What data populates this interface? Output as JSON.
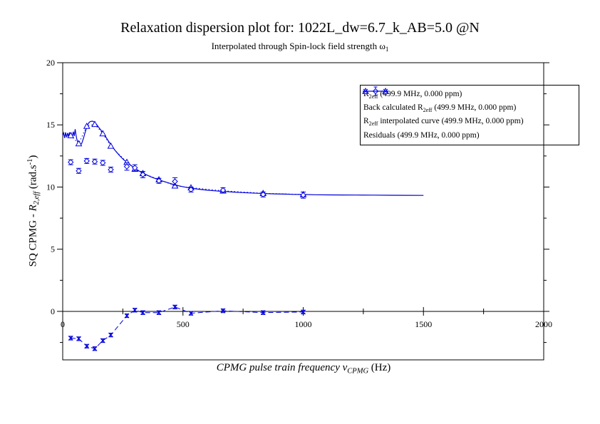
{
  "title": "Relaxation dispersion plot for: 1022L_dw=6.7_k_AB=5.0 @N",
  "subtitle_segments": [
    {
      "t": "Interpolated through Spin-lock field strength "
    },
    {
      "t": "ω"
    },
    {
      "t": "1",
      "sub": true
    }
  ],
  "x_axis": {
    "label_segments": [
      {
        "t": "CPMG pulse train frequency ",
        "i": true
      },
      {
        "t": "ν",
        "i": true
      },
      {
        "t": "CPMG",
        "i": true,
        "sub": true
      },
      {
        "t": " (Hz)"
      }
    ],
    "min": 0,
    "max": 2000,
    "major_ticks": [
      0,
      500,
      1000,
      1500,
      2000
    ],
    "tick_labels": [
      "0",
      "500",
      "1000",
      "1500",
      "2000"
    ],
    "minor_ticks": [
      250,
      750,
      1250,
      1750
    ]
  },
  "y_axis": {
    "label_segments": [
      {
        "t": "SQ CPMG - "
      },
      {
        "t": "R",
        "i": true
      },
      {
        "t": "2,eff",
        "i": true,
        "sub": true
      },
      {
        "t": " (rad.s"
      },
      {
        "t": "-1",
        "sup": true
      },
      {
        "t": ")"
      }
    ],
    "min": -3.9,
    "max": 20,
    "major_ticks": [
      0,
      5,
      10,
      15,
      20
    ],
    "tick_labels": [
      "0",
      "5",
      "10",
      "15",
      "20"
    ],
    "minor_ticks": [
      -2.5,
      2.5,
      7.5,
      12.5,
      17.5
    ]
  },
  "legend": {
    "items": [
      {
        "marker": "diamond-point",
        "segments": [
          {
            "t": "R"
          },
          {
            "t": "2eff",
            "sub": true
          },
          {
            "t": " (499.9 MHz, 0.000 ppm)"
          }
        ]
      },
      {
        "marker": "triangle-dotted",
        "segments": [
          {
            "t": "Back calculated R"
          },
          {
            "t": "2eff",
            "sub": true
          },
          {
            "t": " (499.9 MHz, 0.000 ppm)"
          }
        ]
      },
      {
        "marker": "solid-line",
        "segments": [
          {
            "t": "R"
          },
          {
            "t": "2eff",
            "sub": true
          },
          {
            "t": " interpolated curve (499.9 MHz, 0.000 ppm)"
          }
        ]
      },
      {
        "marker": "x-dashed",
        "segments": [
          {
            "t": "Residuals (499.9 MHz, 0.000 ppm)"
          }
        ]
      }
    ]
  },
  "colors": {
    "series_blue": "#0000dd",
    "axis": "#000000",
    "background": "#ffffff"
  },
  "chart_data": {
    "type": "line",
    "title": "Relaxation dispersion plot for: 1022L_dw=6.7_k_AB=5.0 @N",
    "subtitle": "Interpolated through Spin-lock field strength omega_1",
    "xlabel": "CPMG pulse train frequency nu_CPMG (Hz)",
    "ylabel": "SQ CPMG - R_2,eff (rad.s^-1)",
    "xlim": [
      0,
      2000
    ],
    "ylim": [
      -3.9,
      20
    ],
    "grid": false,
    "legend_position": "upper right",
    "frequencies_hz": [
      33.33,
      66.67,
      100,
      133.33,
      166.67,
      200,
      266.67,
      300,
      333.33,
      400,
      466.67,
      533.33,
      666.67,
      833.33,
      1000
    ],
    "series": [
      {
        "name": "R2eff (499.9 MHz, 0.000 ppm)",
        "type": "scatter",
        "marker": "diamond",
        "values": [
          12.0,
          11.3,
          12.1,
          12.05,
          11.95,
          11.4,
          11.65,
          11.55,
          11.0,
          10.5,
          10.45,
          9.8,
          9.75,
          9.4,
          9.35
        ],
        "errors": [
          0.2,
          0.2,
          0.2,
          0.2,
          0.2,
          0.2,
          0.3,
          0.25,
          0.25,
          0.2,
          0.3,
          0.2,
          0.2,
          0.2,
          0.25
        ]
      },
      {
        "name": "Back calculated R2eff (499.9 MHz, 0.000 ppm)",
        "type": "scatter-dotted-line",
        "marker": "triangle",
        "values": [
          14.15,
          13.5,
          14.9,
          15.05,
          14.3,
          13.3,
          12.0,
          11.45,
          11.1,
          10.6,
          10.1,
          9.95,
          9.7,
          9.5,
          9.4
        ]
      },
      {
        "name": "R2eff interpolated curve (499.9 MHz, 0.000 ppm)",
        "type": "line",
        "x_range_hz": [
          0,
          1500
        ],
        "points": [
          [
            0,
            14.15
          ],
          [
            4,
            14.35
          ],
          [
            8,
            13.95
          ],
          [
            12,
            14.4
          ],
          [
            16,
            14.0
          ],
          [
            20,
            14.35
          ],
          [
            24,
            14.05
          ],
          [
            28,
            14.4
          ],
          [
            32,
            14.05
          ],
          [
            36,
            14.3
          ],
          [
            40,
            14.05
          ],
          [
            44,
            14.45
          ],
          [
            48,
            14.1
          ],
          [
            52,
            14.65
          ],
          [
            55,
            14.2
          ],
          [
            58,
            13.9
          ],
          [
            62,
            13.65
          ],
          [
            66,
            13.5
          ],
          [
            70,
            13.42
          ],
          [
            75,
            13.4
          ],
          [
            80,
            13.55
          ],
          [
            86,
            13.9
          ],
          [
            92,
            14.3
          ],
          [
            98,
            14.7
          ],
          [
            104,
            15.0
          ],
          [
            110,
            15.2
          ],
          [
            116,
            15.28
          ],
          [
            124,
            15.3
          ],
          [
            132,
            15.22
          ],
          [
            140,
            15.05
          ],
          [
            150,
            14.8
          ],
          [
            160,
            14.55
          ],
          [
            170,
            14.3
          ],
          [
            182,
            13.95
          ],
          [
            195,
            13.55
          ],
          [
            208,
            13.2
          ],
          [
            222,
            12.85
          ],
          [
            238,
            12.5
          ],
          [
            253,
            12.2
          ],
          [
            267,
            12.0
          ],
          [
            283,
            11.75
          ],
          [
            300,
            11.5
          ],
          [
            317,
            11.3
          ],
          [
            333,
            11.12
          ],
          [
            352,
            10.95
          ],
          [
            372,
            10.78
          ],
          [
            392,
            10.64
          ],
          [
            412,
            10.5
          ],
          [
            432,
            10.38
          ],
          [
            452,
            10.26
          ],
          [
            472,
            10.15
          ],
          [
            492,
            10.06
          ],
          [
            512,
            9.98
          ],
          [
            533,
            9.92
          ],
          [
            556,
            9.85
          ],
          [
            580,
            9.79
          ],
          [
            605,
            9.74
          ],
          [
            630,
            9.7
          ],
          [
            656,
            9.66
          ],
          [
            683,
            9.63
          ],
          [
            712,
            9.59
          ],
          [
            742,
            9.56
          ],
          [
            774,
            9.53
          ],
          [
            808,
            9.5
          ],
          [
            844,
            9.47
          ],
          [
            882,
            9.45
          ],
          [
            922,
            9.43
          ],
          [
            962,
            9.41
          ],
          [
            1000,
            9.4
          ],
          [
            1050,
            9.38
          ],
          [
            1100,
            9.37
          ],
          [
            1160,
            9.36
          ],
          [
            1220,
            9.355
          ],
          [
            1290,
            9.35
          ],
          [
            1360,
            9.34
          ],
          [
            1430,
            9.335
          ],
          [
            1500,
            9.33
          ]
        ]
      },
      {
        "name": "Residuals (499.9 MHz, 0.000 ppm)",
        "type": "scatter-dashed-line",
        "marker": "x",
        "values": [
          -2.15,
          -2.2,
          -2.8,
          -3.0,
          -2.35,
          -1.9,
          -0.35,
          0.1,
          -0.1,
          -0.1,
          0.35,
          -0.15,
          0.05,
          -0.1,
          -0.05
        ],
        "errors": [
          0.15,
          0.15,
          0.15,
          0.15,
          0.15,
          0.15,
          0.15,
          0.15,
          0.15,
          0.15,
          0.15,
          0.15,
          0.15,
          0.15,
          0.15
        ]
      }
    ]
  }
}
